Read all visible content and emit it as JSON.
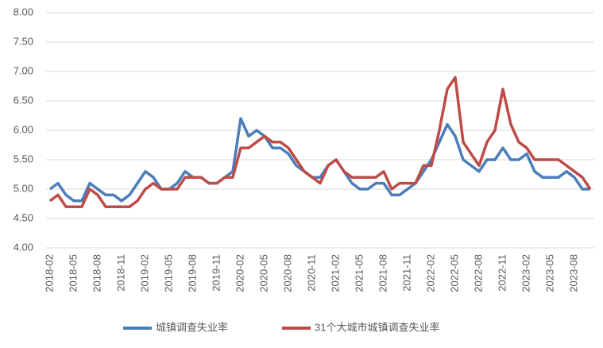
{
  "chart_data": {
    "type": "line",
    "categories": [
      "2018-02",
      null,
      null,
      "2018-05",
      null,
      null,
      "2018-08",
      null,
      null,
      "2018-11",
      null,
      null,
      "2019-02",
      null,
      null,
      "2019-05",
      null,
      null,
      "2019-08",
      null,
      null,
      "2019-11",
      null,
      null,
      "2020-02",
      null,
      null,
      "2020-05",
      null,
      null,
      "2020-08",
      null,
      null,
      "2020-11",
      null,
      null,
      "2021-02",
      null,
      null,
      "2021-05",
      null,
      null,
      "2021-08",
      null,
      null,
      "2021-11",
      null,
      null,
      "2022-02",
      null,
      null,
      "2022-05",
      null,
      null,
      "2022-08",
      null,
      null,
      "2022-11",
      null,
      null,
      "2023-02",
      null,
      null,
      "2023-05",
      null,
      null,
      "2023-08",
      null,
      null
    ],
    "series": [
      {
        "name": "城镇调查失业率",
        "color": "#4a7ebb",
        "values": [
          5.0,
          5.1,
          4.9,
          4.8,
          4.8,
          5.1,
          5.0,
          4.9,
          4.9,
          4.8,
          4.9,
          5.1,
          5.3,
          5.2,
          5.0,
          5.0,
          5.1,
          5.3,
          5.2,
          5.2,
          5.1,
          5.1,
          5.2,
          5.3,
          6.2,
          5.9,
          6.0,
          5.9,
          5.7,
          5.7,
          5.6,
          5.4,
          5.3,
          5.2,
          5.2,
          5.4,
          5.5,
          5.3,
          5.1,
          5.0,
          5.0,
          5.1,
          5.1,
          4.9,
          4.9,
          5.0,
          5.1,
          5.3,
          5.5,
          5.8,
          6.1,
          5.9,
          5.5,
          5.4,
          5.3,
          5.5,
          5.5,
          5.7,
          5.5,
          5.5,
          5.6,
          5.3,
          5.2,
          5.2,
          5.2,
          5.3,
          5.2,
          5.0,
          5.0
        ]
      },
      {
        "name": "31个大城市城镇调查失业率",
        "color": "#be4b48",
        "values": [
          4.8,
          4.9,
          4.7,
          4.7,
          4.7,
          5.0,
          4.9,
          4.7,
          4.7,
          4.7,
          4.7,
          4.8,
          5.0,
          5.1,
          5.0,
          5.0,
          5.0,
          5.2,
          5.2,
          5.2,
          5.1,
          5.1,
          5.2,
          5.2,
          5.7,
          5.7,
          5.8,
          5.9,
          5.8,
          5.8,
          5.7,
          5.5,
          5.3,
          5.2,
          5.1,
          5.4,
          5.5,
          5.3,
          5.2,
          5.2,
          5.2,
          5.2,
          5.3,
          5.0,
          5.1,
          5.1,
          5.1,
          5.4,
          5.4,
          6.0,
          6.7,
          6.9,
          5.8,
          5.6,
          5.4,
          5.8,
          6.0,
          6.7,
          6.1,
          5.8,
          5.7,
          5.5,
          5.5,
          5.5,
          5.5,
          5.4,
          5.3,
          5.2,
          5.0
        ]
      }
    ],
    "ylim": [
      4.0,
      8.0
    ],
    "yticks": [
      {
        "value": 4,
        "label": "4.00"
      },
      {
        "value": 4.5,
        "label": "4.50"
      },
      {
        "value": 5,
        "label": "5.00"
      },
      {
        "value": 5.5,
        "label": "5.50"
      },
      {
        "value": 6,
        "label": "6.00"
      },
      {
        "value": 6.5,
        "label": "6.50"
      },
      {
        "value": 7,
        "label": "7.00"
      },
      {
        "value": 7.5,
        "label": "7.50"
      },
      {
        "value": 8,
        "label": "8.00"
      }
    ],
    "grid": true,
    "legend": "bottom"
  }
}
